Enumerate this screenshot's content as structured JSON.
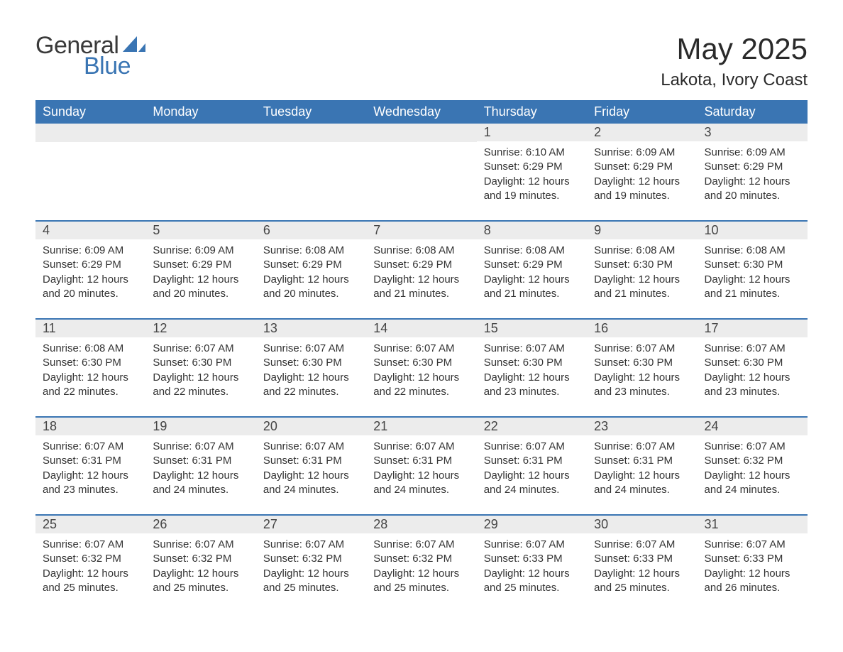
{
  "brand": {
    "text_general": "General",
    "text_blue": "Blue",
    "icon_color": "#3a75b3"
  },
  "title": "May 2025",
  "location": "Lakota, Ivory Coast",
  "colors": {
    "header_bg": "#3a75b3",
    "daynum_bg": "#ececec",
    "text": "#333333",
    "page_bg": "#ffffff"
  },
  "fonts": {
    "title_size_pt": 32,
    "location_size_pt": 18,
    "dow_size_pt": 14,
    "daynum_size_pt": 14,
    "body_size_pt": 11
  },
  "days_of_week": [
    "Sunday",
    "Monday",
    "Tuesday",
    "Wednesday",
    "Thursday",
    "Friday",
    "Saturday"
  ],
  "weeks": [
    [
      null,
      null,
      null,
      null,
      {
        "n": "1",
        "sunrise": "6:10 AM",
        "sunset": "6:29 PM",
        "daylight": "12 hours and 19 minutes."
      },
      {
        "n": "2",
        "sunrise": "6:09 AM",
        "sunset": "6:29 PM",
        "daylight": "12 hours and 19 minutes."
      },
      {
        "n": "3",
        "sunrise": "6:09 AM",
        "sunset": "6:29 PM",
        "daylight": "12 hours and 20 minutes."
      }
    ],
    [
      {
        "n": "4",
        "sunrise": "6:09 AM",
        "sunset": "6:29 PM",
        "daylight": "12 hours and 20 minutes."
      },
      {
        "n": "5",
        "sunrise": "6:09 AM",
        "sunset": "6:29 PM",
        "daylight": "12 hours and 20 minutes."
      },
      {
        "n": "6",
        "sunrise": "6:08 AM",
        "sunset": "6:29 PM",
        "daylight": "12 hours and 20 minutes."
      },
      {
        "n": "7",
        "sunrise": "6:08 AM",
        "sunset": "6:29 PM",
        "daylight": "12 hours and 21 minutes."
      },
      {
        "n": "8",
        "sunrise": "6:08 AM",
        "sunset": "6:29 PM",
        "daylight": "12 hours and 21 minutes."
      },
      {
        "n": "9",
        "sunrise": "6:08 AM",
        "sunset": "6:30 PM",
        "daylight": "12 hours and 21 minutes."
      },
      {
        "n": "10",
        "sunrise": "6:08 AM",
        "sunset": "6:30 PM",
        "daylight": "12 hours and 21 minutes."
      }
    ],
    [
      {
        "n": "11",
        "sunrise": "6:08 AM",
        "sunset": "6:30 PM",
        "daylight": "12 hours and 22 minutes."
      },
      {
        "n": "12",
        "sunrise": "6:07 AM",
        "sunset": "6:30 PM",
        "daylight": "12 hours and 22 minutes."
      },
      {
        "n": "13",
        "sunrise": "6:07 AM",
        "sunset": "6:30 PM",
        "daylight": "12 hours and 22 minutes."
      },
      {
        "n": "14",
        "sunrise": "6:07 AM",
        "sunset": "6:30 PM",
        "daylight": "12 hours and 22 minutes."
      },
      {
        "n": "15",
        "sunrise": "6:07 AM",
        "sunset": "6:30 PM",
        "daylight": "12 hours and 23 minutes."
      },
      {
        "n": "16",
        "sunrise": "6:07 AM",
        "sunset": "6:30 PM",
        "daylight": "12 hours and 23 minutes."
      },
      {
        "n": "17",
        "sunrise": "6:07 AM",
        "sunset": "6:30 PM",
        "daylight": "12 hours and 23 minutes."
      }
    ],
    [
      {
        "n": "18",
        "sunrise": "6:07 AM",
        "sunset": "6:31 PM",
        "daylight": "12 hours and 23 minutes."
      },
      {
        "n": "19",
        "sunrise": "6:07 AM",
        "sunset": "6:31 PM",
        "daylight": "12 hours and 24 minutes."
      },
      {
        "n": "20",
        "sunrise": "6:07 AM",
        "sunset": "6:31 PM",
        "daylight": "12 hours and 24 minutes."
      },
      {
        "n": "21",
        "sunrise": "6:07 AM",
        "sunset": "6:31 PM",
        "daylight": "12 hours and 24 minutes."
      },
      {
        "n": "22",
        "sunrise": "6:07 AM",
        "sunset": "6:31 PM",
        "daylight": "12 hours and 24 minutes."
      },
      {
        "n": "23",
        "sunrise": "6:07 AM",
        "sunset": "6:31 PM",
        "daylight": "12 hours and 24 minutes."
      },
      {
        "n": "24",
        "sunrise": "6:07 AM",
        "sunset": "6:32 PM",
        "daylight": "12 hours and 24 minutes."
      }
    ],
    [
      {
        "n": "25",
        "sunrise": "6:07 AM",
        "sunset": "6:32 PM",
        "daylight": "12 hours and 25 minutes."
      },
      {
        "n": "26",
        "sunrise": "6:07 AM",
        "sunset": "6:32 PM",
        "daylight": "12 hours and 25 minutes."
      },
      {
        "n": "27",
        "sunrise": "6:07 AM",
        "sunset": "6:32 PM",
        "daylight": "12 hours and 25 minutes."
      },
      {
        "n": "28",
        "sunrise": "6:07 AM",
        "sunset": "6:32 PM",
        "daylight": "12 hours and 25 minutes."
      },
      {
        "n": "29",
        "sunrise": "6:07 AM",
        "sunset": "6:33 PM",
        "daylight": "12 hours and 25 minutes."
      },
      {
        "n": "30",
        "sunrise": "6:07 AM",
        "sunset": "6:33 PM",
        "daylight": "12 hours and 25 minutes."
      },
      {
        "n": "31",
        "sunrise": "6:07 AM",
        "sunset": "6:33 PM",
        "daylight": "12 hours and 26 minutes."
      }
    ]
  ],
  "labels": {
    "sunrise": "Sunrise:",
    "sunset": "Sunset:",
    "daylight": "Daylight:"
  }
}
